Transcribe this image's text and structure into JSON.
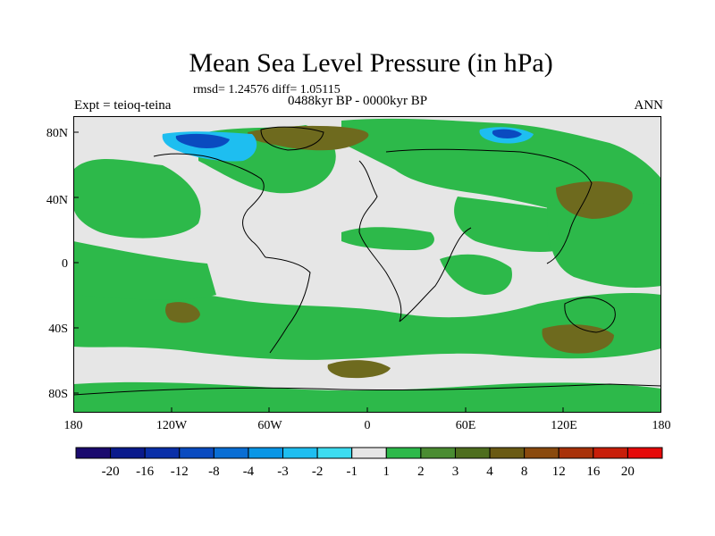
{
  "title": "Mean Sea Level Pressure (in hPa)",
  "stats": "rmsd= 1.24576 diff= 1.05115",
  "period": "0488kyr BP - 0000kyr BP",
  "experiment": "Expt = teioq-teina",
  "season": "ANN",
  "lat_labels": [
    "80N",
    "40N",
    "0",
    "40S",
    "80S"
  ],
  "lon_labels": [
    "180",
    "120W",
    "60W",
    "0",
    "60E",
    "120E",
    "180"
  ],
  "legend": {
    "labels": [
      "-20",
      "-16",
      "-12",
      "-8",
      "-4",
      "-3",
      "-2",
      "-1",
      "1",
      "2",
      "3",
      "4",
      "8",
      "12",
      "16",
      "20"
    ],
    "colors": [
      "#1a0a6e",
      "#0a1a8c",
      "#0a2fa8",
      "#0a4bc0",
      "#0a6ed4",
      "#0a96e6",
      "#1ebef0",
      "#3cdcf0",
      "#e6e6e6",
      "#2db94a",
      "#4a8c32",
      "#4e6e1e",
      "#6a5a14",
      "#8a4a0e",
      "#a8320a",
      "#c81e0a",
      "#e60a0a"
    ]
  },
  "colors": {
    "land_sea_neutral": "#e6e6e6",
    "positive_small": "#2db94a",
    "positive_mid": "#6a5a14",
    "negative": "#1ebef0",
    "coast": "#000000"
  }
}
